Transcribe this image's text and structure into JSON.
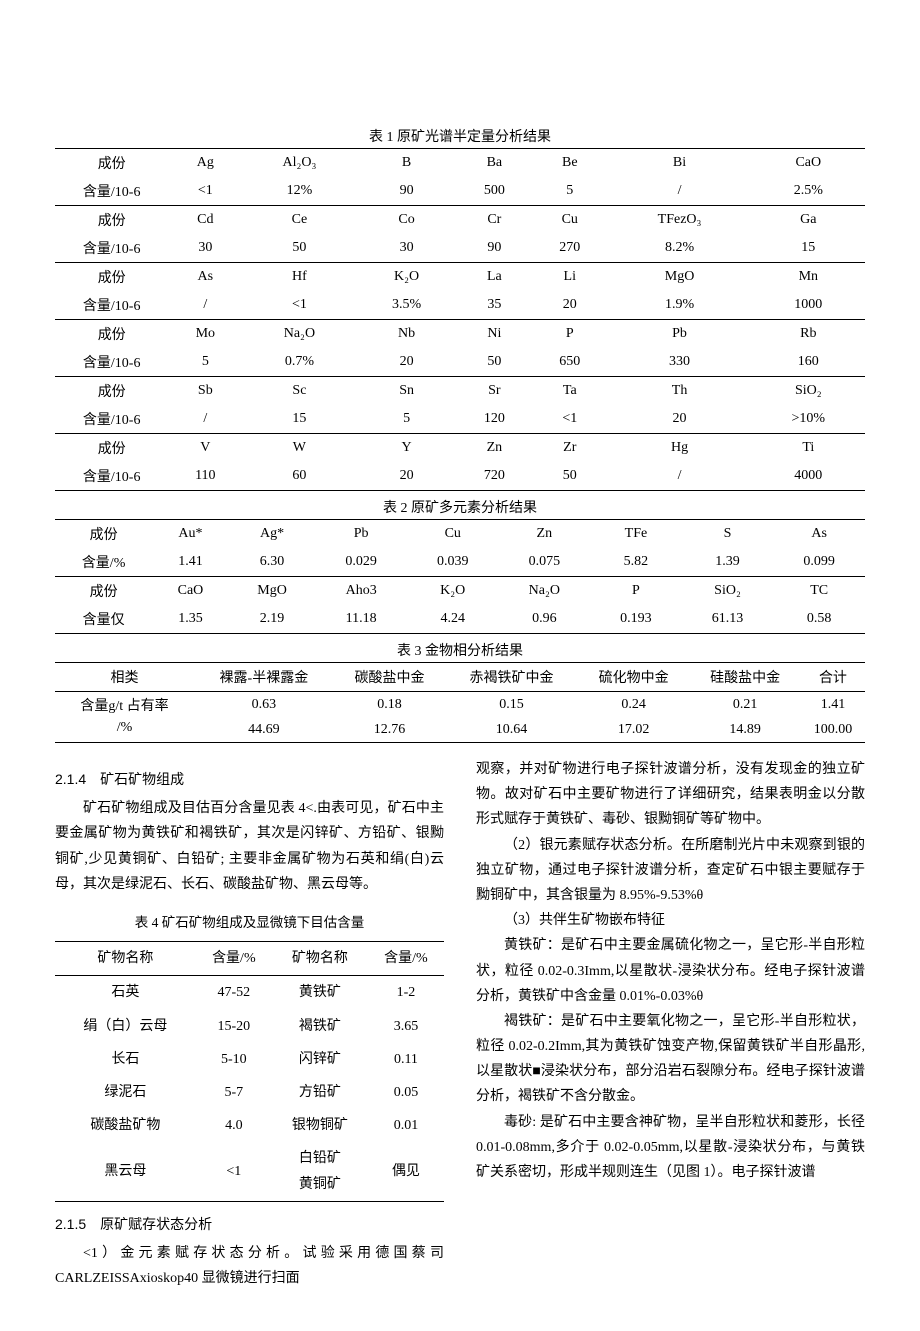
{
  "table1": {
    "title": "表 1 原矿光谱半定量分析结果",
    "rows": [
      {
        "label": "成份",
        "cells": [
          "Ag",
          "Al₂O₃",
          "B",
          "Ba",
          "Be",
          "Bi",
          "CaO"
        ]
      },
      {
        "label": "含量/10-6",
        "cells": [
          "<1",
          "12%",
          "90",
          "500",
          "5",
          "/",
          "2.5%"
        ]
      },
      {
        "label": "成份",
        "cells": [
          "Cd",
          "Ce",
          "Co",
          "Cr",
          "Cu",
          "TFezO₃",
          "Ga"
        ]
      },
      {
        "label": "含量/10-6",
        "cells": [
          "30",
          "50",
          "30",
          "90",
          "270",
          "8.2%",
          "15"
        ]
      },
      {
        "label": "成份",
        "cells": [
          "As",
          "Hf",
          "K₂O",
          "La",
          "Li",
          "MgO",
          "Mn"
        ]
      },
      {
        "label": "含量/10-6",
        "cells": [
          "/",
          "<1",
          "3.5%",
          "35",
          "20",
          "1.9%",
          "1000"
        ]
      },
      {
        "label": "成份",
        "cells": [
          "Mo",
          "Na₂O",
          "Nb",
          "Ni",
          "P",
          "Pb",
          "Rb"
        ]
      },
      {
        "label": "含量/10-6",
        "cells": [
          "5",
          "0.7%",
          "20",
          "50",
          "650",
          "330",
          "160"
        ]
      },
      {
        "label": "成份",
        "cells": [
          "Sb",
          "Sc",
          "Sn",
          "Sr",
          "Ta",
          "Th",
          "SiO₂"
        ]
      },
      {
        "label": "含量/10-6",
        "cells": [
          "/",
          "15",
          "5",
          "120",
          "<1",
          "20",
          ">10%"
        ]
      },
      {
        "label": "成份",
        "cells": [
          "V",
          "W",
          "Y",
          "Zn",
          "Zr",
          "Hg",
          "Ti"
        ]
      },
      {
        "label": "含量/10-6",
        "cells": [
          "110",
          "60",
          "20",
          "720",
          "50",
          "/",
          "4000"
        ]
      }
    ]
  },
  "table2": {
    "title": "表 2 原矿多元素分析结果",
    "rows": [
      {
        "label": "成份",
        "cells": [
          "Au*",
          "Ag*",
          "Pb",
          "Cu",
          "Zn",
          "TFe",
          "S",
          "As"
        ]
      },
      {
        "label": "含量/%",
        "cells": [
          "1.41",
          "6.30",
          "0.029",
          "0.039",
          "0.075",
          "5.82",
          "1.39",
          "0.099"
        ]
      },
      {
        "label": "成份",
        "cells": [
          "CaO",
          "MgO",
          "Aho3",
          "K₂O",
          "Na₂O",
          "P",
          "SiO₂",
          "TC"
        ]
      },
      {
        "label": "含量仅",
        "cells": [
          "1.35",
          "2.19",
          "11.18",
          "4.24",
          "0.96",
          "0.193",
          "61.13",
          "0.58"
        ]
      }
    ]
  },
  "table3": {
    "title": "表 3 金物相分析结果",
    "header": [
      "相类",
      "裸露-半裸露金",
      "碳酸盐中金",
      "赤褐铁矿中金",
      "硫化物中金",
      "硅酸盐中金",
      "合计"
    ],
    "row1_label_a": "含量g/t 占有率",
    "row1_label_b": "/%",
    "row1": [
      "0.63",
      "0.18",
      "0.15",
      "0.24",
      "0.21",
      "1.41"
    ],
    "row2": [
      "44.69",
      "12.76",
      "10.64",
      "17.02",
      "14.89",
      "100.00"
    ]
  },
  "table4": {
    "title": "表 4 矿石矿物组成及显微镜下目估含量",
    "header": [
      "矿物名称",
      "含量/%",
      "矿物名称",
      "含量/%"
    ],
    "rows": [
      [
        "石英",
        "47-52",
        "黄铁矿",
        "1-2"
      ],
      [
        "绢（白）云母",
        "15-20",
        "褐铁矿",
        "3.65"
      ],
      [
        "长石",
        "5-10",
        "闪锌矿",
        "0.11"
      ],
      [
        "绿泥石",
        "5-7",
        "方铅矿",
        "0.05"
      ],
      [
        "碳酸盐矿物",
        "4.0",
        "银物铜矿",
        "0.01"
      ],
      [
        "黑云母",
        "<1",
        "白铅矿\n黄铜矿",
        "偶见"
      ]
    ]
  },
  "text": {
    "sec214_head": "2.1.4　矿石矿物组成",
    "sec214_p1": "矿石矿物组成及目估百分含量见表 4<.由表可见，矿石中主要金属矿物为黄铁矿和褐铁矿，其次是闪锌矿、方铅矿、银黝铜矿,少见黄铜矿、白铅矿; 主要非金属矿物为石英和绢(白)云母，其次是绿泥石、长石、碳酸盐矿物、黑云母等。",
    "sec215_head": "2.1.5　原矿赋存状态分析",
    "sec215_p1": "<1）金元素赋存状态分析。试验采用德国蔡司 CARLZEISSAxioskop40 显微镜进行扫面",
    "right_p1": "观察，并对矿物进行电子探针波谱分析，没有发现金的独立矿物。故对矿石中主要矿物进行了详细研究，结果表明金以分散形式赋存于黄铁矿、毒砂、银黝铜矿等矿物中。",
    "right_p2": "（2）银元素赋存状态分析。在所磨制光片中未观察到银的独立矿物，通过电子探针波谱分析，查定矿石中银主要赋存于黝铜矿中，其含银量为 8.95%-9.53%θ",
    "right_p3": "（3）共伴生矿物嵌布特征",
    "right_p4": "黄铁矿：是矿石中主要金属硫化物之一，呈它形-半自形粒状，粒径 0.02-0.3Imm,以星散状-浸染状分布。经电子探针波谱分析，黄铁矿中含金量 0.01%-0.03%θ",
    "right_p5": "褐铁矿：是矿石中主要氧化物之一，呈它形-半自形粒状，粒径 0.02-0.2Imm,其为黄铁矿蚀变产物,保留黄铁矿半自形晶形,以星散状■浸染状分布，部分沿岩石裂隙分布。经电子探针波谱分析，褐铁矿不含分散金。",
    "right_p6": "毒砂: 是矿石中主要含神矿物，呈半自形粒状和菱形，长径 0.01-0.08mm,多介于 0.02-0.05mm,以星散-浸染状分布，与黄铁矿关系密切，形成半规则连生（见图 1）。电子探针波谱"
  }
}
